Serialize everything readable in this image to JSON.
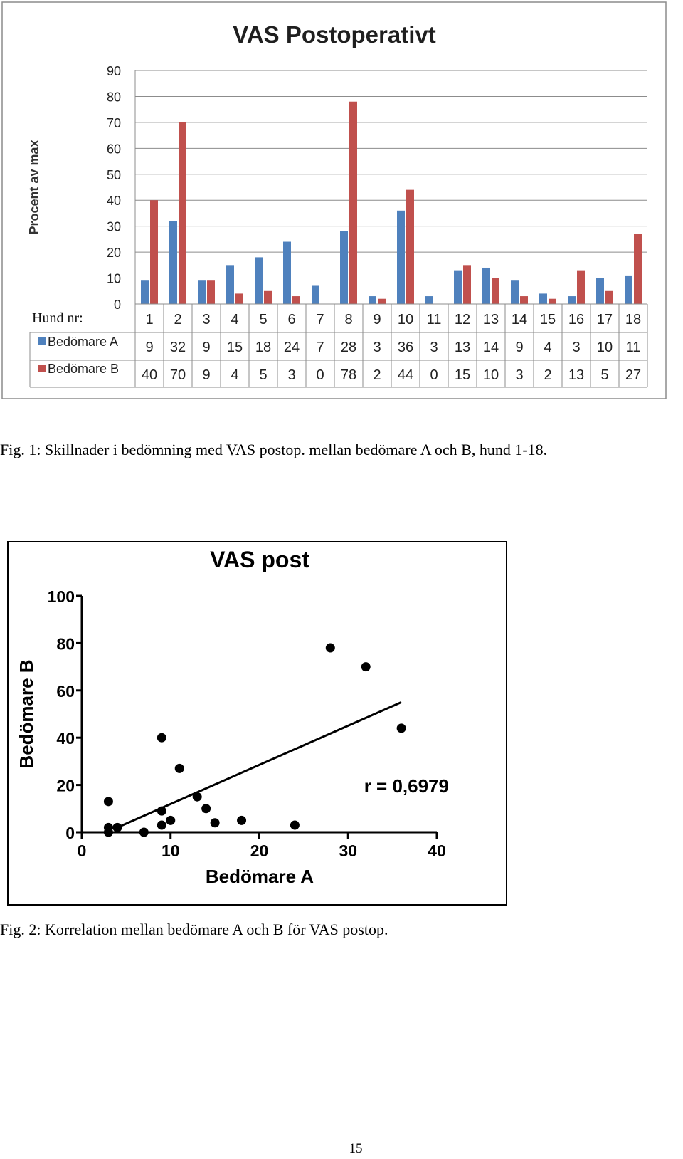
{
  "chart_data": [
    {
      "type": "bar",
      "title": "VAS Postoperativt",
      "ylabel": "Procent av max",
      "xlabel": "Hund nr:",
      "ylim": [
        0,
        90
      ],
      "yticks": [
        0,
        10,
        20,
        30,
        40,
        50,
        60,
        70,
        80,
        90
      ],
      "grid": true,
      "categories": [
        "1",
        "2",
        "3",
        "4",
        "5",
        "6",
        "7",
        "8",
        "9",
        "10",
        "11",
        "12",
        "13",
        "14",
        "15",
        "16",
        "17",
        "18"
      ],
      "series": [
        {
          "name": "Bedömare A",
          "color": "#4f81bd",
          "values": [
            9,
            32,
            9,
            15,
            18,
            24,
            7,
            28,
            3,
            36,
            3,
            13,
            14,
            9,
            4,
            3,
            10,
            11
          ]
        },
        {
          "name": "Bedömare B",
          "color": "#c0504d",
          "values": [
            40,
            70,
            9,
            4,
            5,
            3,
            0,
            78,
            2,
            44,
            0,
            15,
            10,
            3,
            2,
            13,
            5,
            27
          ]
        }
      ],
      "data_table": true
    },
    {
      "type": "scatter",
      "title": "VAS post",
      "xlabel": "Bedömare A",
      "ylabel": "Bedömare B",
      "xlim": [
        0,
        40
      ],
      "ylim": [
        0,
        100
      ],
      "xticks": [
        0,
        10,
        20,
        30,
        40
      ],
      "yticks": [
        0,
        20,
        40,
        60,
        80,
        100
      ],
      "points": [
        [
          9,
          40
        ],
        [
          32,
          70
        ],
        [
          9,
          9
        ],
        [
          15,
          4
        ],
        [
          18,
          5
        ],
        [
          24,
          3
        ],
        [
          7,
          0
        ],
        [
          28,
          78
        ],
        [
          3,
          2
        ],
        [
          36,
          44
        ],
        [
          3,
          0
        ],
        [
          13,
          15
        ],
        [
          14,
          10
        ],
        [
          9,
          3
        ],
        [
          4,
          2
        ],
        [
          3,
          13
        ],
        [
          10,
          5
        ],
        [
          11,
          27
        ]
      ],
      "regression_line": {
        "x": [
          4,
          36
        ],
        "y": [
          2,
          55
        ]
      },
      "annotation": "r = 0,6979"
    }
  ],
  "captions": {
    "fig1": "Fig. 1: Skillnader i bedömning med VAS postop. mellan bedömare A och B, hund 1-18.",
    "fig2": "Fig. 2: Korrelation mellan bedömare A och B för VAS postop."
  },
  "page_number": "15"
}
